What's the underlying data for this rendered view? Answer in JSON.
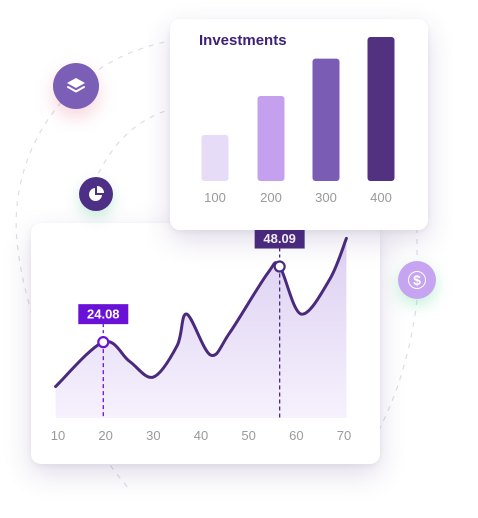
{
  "chart_data": [
    {
      "type": "bar",
      "title": "Investments",
      "categories": [
        "100",
        "200",
        "300",
        "400"
      ],
      "values": [
        0.32,
        0.59,
        0.85,
        1.0
      ],
      "colors": [
        "#e7dcf7",
        "#c5a0ee",
        "#7a5cb4",
        "#523180"
      ]
    },
    {
      "type": "area",
      "x_ticks": [
        10,
        20,
        30,
        40,
        50,
        60,
        70
      ],
      "xlim": [
        10,
        70
      ],
      "ylim": [
        0,
        60
      ],
      "x": [
        9.5,
        19.5,
        25,
        30,
        35,
        37,
        42,
        46,
        54,
        56.5,
        61,
        67,
        70.5
      ],
      "y": [
        10,
        24.08,
        18,
        13,
        23,
        33,
        20,
        27,
        46,
        48.09,
        33,
        44,
        57
      ],
      "annotations": [
        {
          "x": 19.5,
          "y": 24.08,
          "label": "24.08",
          "color": "#6a11d8"
        },
        {
          "x": 56.5,
          "y": 48.09,
          "label": "48.09",
          "color": "#4b2b7f"
        }
      ],
      "line_color": "#4a2a7c",
      "fill_color": "#ddd0f1"
    }
  ]
}
